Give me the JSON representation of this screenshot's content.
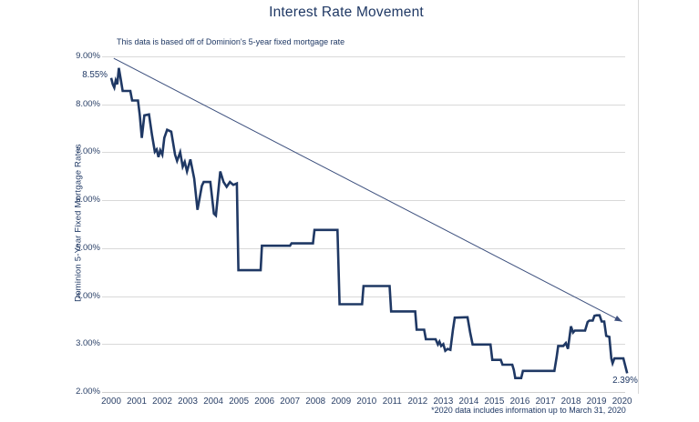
{
  "page": {
    "title": "Interest Rate Movement",
    "annotation": "This data is based off of Dominion's 5-year fixed mortgage rate",
    "footnote": "*2020 data includes information up to March 31, 2020",
    "y_axis_title": "Dominion 5-Year Fixed Mortgage Rates",
    "start_point_label": "8.55%",
    "end_point_label": "2.39%"
  },
  "colors": {
    "series_line": "#1f3864",
    "trend_line": "#3c4f7d",
    "text_navy": "#1f3864",
    "tick_text": "#2b4168",
    "gridline": "#d9d9d9",
    "axis_line": "#d0d0d0",
    "chart_border": "#d9d9d9"
  },
  "chart_data": {
    "type": "line",
    "title": "Interest Rate Movement",
    "subtitle": "This data is based off of Dominion's 5-year fixed mortgage rate",
    "footnote": "*2020 data includes information up to March 31, 2020",
    "xlabel": "",
    "ylabel": "Dominion 5-Year Fixed Mortgage Rates",
    "ylim": [
      2.0,
      9.0
    ],
    "xlim": [
      2000,
      2020.25
    ],
    "grid": "horizontal",
    "legend": "none",
    "y_tick_values": [
      9,
      8,
      7,
      6,
      5,
      4,
      3,
      2
    ],
    "y_tick_labels": [
      "9.00%",
      "8.00%",
      "7.00%",
      "6.00%",
      "5.00%",
      "4.00%",
      "3.00%",
      "2.00%"
    ],
    "x_tick_labels": [
      "2000",
      "2001",
      "2002",
      "2003",
      "2004",
      "2005",
      "2006",
      "2007",
      "2008",
      "2009",
      "2010",
      "2011",
      "2012",
      "2013",
      "2014",
      "2015",
      "2016",
      "2017",
      "2018",
      "2019",
      "2020"
    ],
    "point_labels": [
      {
        "x": 2000.0,
        "y": 8.55,
        "text": "8.55%"
      },
      {
        "x": 2020.2,
        "y": 2.39,
        "text": "2.39%"
      }
    ],
    "trend_arrow": {
      "from": [
        2000.1,
        8.96
      ],
      "to": [
        2020.0,
        3.47
      ]
    },
    "series": [
      {
        "name": "Dominion 5-year fixed mortgage rate",
        "points": [
          [
            2000.0,
            8.55
          ],
          [
            2000.06,
            8.42
          ],
          [
            2000.12,
            8.35
          ],
          [
            2000.18,
            8.5
          ],
          [
            2000.24,
            8.42
          ],
          [
            2000.3,
            8.76
          ],
          [
            2000.38,
            8.5
          ],
          [
            2000.45,
            8.28
          ],
          [
            2000.75,
            8.28
          ],
          [
            2000.82,
            8.08
          ],
          [
            2001.05,
            8.08
          ],
          [
            2001.12,
            7.77
          ],
          [
            2001.2,
            7.3
          ],
          [
            2001.3,
            7.77
          ],
          [
            2001.48,
            7.79
          ],
          [
            2001.6,
            7.36
          ],
          [
            2001.71,
            7.01
          ],
          [
            2001.78,
            7.06
          ],
          [
            2001.85,
            6.9
          ],
          [
            2001.92,
            7.04
          ],
          [
            2002.0,
            6.95
          ],
          [
            2002.08,
            7.3
          ],
          [
            2002.19,
            7.47
          ],
          [
            2002.35,
            7.43
          ],
          [
            2002.5,
            6.95
          ],
          [
            2002.58,
            6.82
          ],
          [
            2002.7,
            7.0
          ],
          [
            2002.8,
            6.7
          ],
          [
            2002.88,
            6.8
          ],
          [
            2002.97,
            6.6
          ],
          [
            2003.1,
            6.85
          ],
          [
            2003.25,
            6.45
          ],
          [
            2003.38,
            5.8
          ],
          [
            2003.55,
            6.3
          ],
          [
            2003.62,
            6.38
          ],
          [
            2003.88,
            6.38
          ],
          [
            2004.02,
            5.72
          ],
          [
            2004.1,
            5.68
          ],
          [
            2004.27,
            6.6
          ],
          [
            2004.4,
            6.38
          ],
          [
            2004.52,
            6.28
          ],
          [
            2004.65,
            6.38
          ],
          [
            2004.78,
            6.32
          ],
          [
            2004.92,
            6.35
          ],
          [
            2004.98,
            4.54
          ],
          [
            2005.85,
            4.54
          ],
          [
            2005.9,
            5.05
          ],
          [
            2007.0,
            5.05
          ],
          [
            2007.06,
            5.1
          ],
          [
            2007.9,
            5.1
          ],
          [
            2007.96,
            5.38
          ],
          [
            2008.86,
            5.38
          ],
          [
            2008.94,
            3.83
          ],
          [
            2009.82,
            3.83
          ],
          [
            2009.88,
            4.21
          ],
          [
            2010.9,
            4.21
          ],
          [
            2010.96,
            3.68
          ],
          [
            2011.9,
            3.68
          ],
          [
            2011.96,
            3.3
          ],
          [
            2012.25,
            3.3
          ],
          [
            2012.32,
            3.1
          ],
          [
            2012.7,
            3.1
          ],
          [
            2012.79,
            2.99
          ],
          [
            2012.85,
            3.05
          ],
          [
            2012.92,
            2.96
          ],
          [
            2013.0,
            3.0
          ],
          [
            2013.08,
            2.86
          ],
          [
            2013.17,
            2.9
          ],
          [
            2013.28,
            2.88
          ],
          [
            2013.38,
            3.3
          ],
          [
            2013.45,
            3.55
          ],
          [
            2013.95,
            3.56
          ],
          [
            2014.05,
            3.25
          ],
          [
            2014.15,
            2.99
          ],
          [
            2014.85,
            2.99
          ],
          [
            2014.92,
            2.67
          ],
          [
            2015.25,
            2.67
          ],
          [
            2015.32,
            2.57
          ],
          [
            2015.7,
            2.57
          ],
          [
            2015.76,
            2.46
          ],
          [
            2015.82,
            2.29
          ],
          [
            2016.05,
            2.29
          ],
          [
            2016.12,
            2.44
          ],
          [
            2017.35,
            2.44
          ],
          [
            2017.44,
            2.73
          ],
          [
            2017.5,
            2.96
          ],
          [
            2017.7,
            2.96
          ],
          [
            2017.8,
            3.02
          ],
          [
            2017.88,
            2.9
          ],
          [
            2018.0,
            3.37
          ],
          [
            2018.08,
            3.24
          ],
          [
            2018.15,
            3.28
          ],
          [
            2018.55,
            3.28
          ],
          [
            2018.65,
            3.46
          ],
          [
            2018.72,
            3.49
          ],
          [
            2018.85,
            3.49
          ],
          [
            2018.92,
            3.59
          ],
          [
            2019.0,
            3.6
          ],
          [
            2019.12,
            3.6
          ],
          [
            2019.2,
            3.47
          ],
          [
            2019.3,
            3.47
          ],
          [
            2019.38,
            3.17
          ],
          [
            2019.5,
            3.15
          ],
          [
            2019.58,
            2.7
          ],
          [
            2019.63,
            2.6
          ],
          [
            2019.7,
            2.7
          ],
          [
            2020.05,
            2.7
          ],
          [
            2020.2,
            2.39
          ]
        ]
      }
    ]
  }
}
